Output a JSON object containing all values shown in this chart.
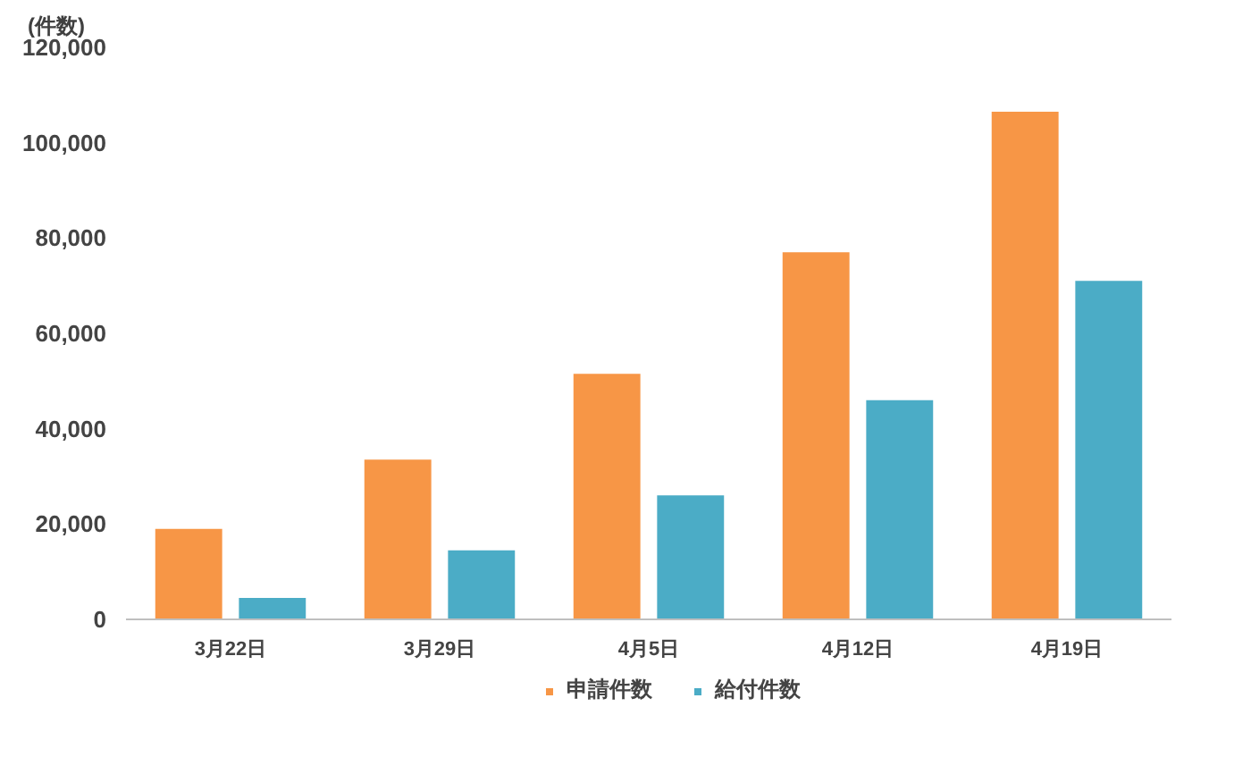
{
  "chart_data": {
    "type": "bar",
    "ylabel": "(件数)",
    "categories": [
      "3月22日",
      "3月29日",
      "4月5日",
      "4月12日",
      "4月19日"
    ],
    "series": [
      {
        "name": "申請件数",
        "color": "#f79646",
        "values": [
          19000,
          33500,
          51500,
          77000,
          106500
        ]
      },
      {
        "name": "給付件数",
        "color": "#4bacc6",
        "values": [
          4500,
          14500,
          26000,
          46000,
          71000
        ]
      }
    ],
    "ylim": [
      0,
      120000
    ],
    "yticks": [
      {
        "value": 0,
        "label": "0"
      },
      {
        "value": 20000,
        "label": "20,000"
      },
      {
        "value": 40000,
        "label": "40,000"
      },
      {
        "value": 60000,
        "label": "60,000"
      },
      {
        "value": 80000,
        "label": "80,000"
      },
      {
        "value": 100000,
        "label": "100,000"
      },
      {
        "value": 120000,
        "label": "120,000"
      }
    ],
    "grid": false,
    "legend": "bottom"
  }
}
